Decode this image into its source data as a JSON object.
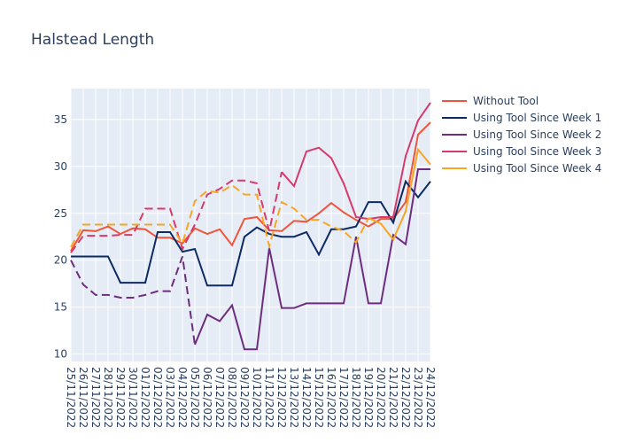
{
  "chart_data": {
    "type": "line",
    "title": "Halstead Length",
    "xlabel": "",
    "ylabel": "",
    "ylim": [
      9.2,
      38.3
    ],
    "yticks": [
      10,
      15,
      20,
      25,
      30,
      35
    ],
    "x": [
      "25/11/2022",
      "26/11/2022",
      "27/11/2022",
      "28/11/2022",
      "29/11/2022",
      "30/11/2022",
      "01/12/2022",
      "02/12/2022",
      "03/12/2022",
      "04/12/2022",
      "05/12/2022",
      "06/12/2022",
      "07/12/2022",
      "08/12/2022",
      "09/12/2022",
      "10/12/2022",
      "11/12/2022",
      "12/12/2022",
      "13/12/2022",
      "14/12/2022",
      "15/12/2022",
      "16/12/2022",
      "17/12/2022",
      "18/12/2022",
      "19/12/2022",
      "20/12/2022",
      "21/12/2022",
      "22/12/2022",
      "23/12/2022",
      "24/12/2022"
    ],
    "grid": true,
    "legend_position": "right",
    "series": [
      {
        "name": "Without Tool",
        "color": "#ef553b",
        "dash": "solid",
        "values": [
          21.0,
          23.2,
          23.1,
          23.6,
          22.8,
          23.4,
          23.3,
          22.4,
          22.4,
          21.8,
          23.4,
          22.8,
          23.3,
          21.6,
          24.4,
          24.6,
          23.2,
          23.1,
          24.2,
          24.1,
          25.0,
          26.1,
          25.1,
          24.3,
          23.6,
          24.4,
          24.4,
          26.2,
          33.4,
          34.7
        ]
      },
      {
        "name": "Using Tool Since Week 1",
        "color": "#0d2a63",
        "dash": "solid",
        "values": [
          20.4,
          20.4,
          20.4,
          20.4,
          17.6,
          17.6,
          17.6,
          23.0,
          23.0,
          20.9,
          21.2,
          17.3,
          17.3,
          17.3,
          22.5,
          23.5,
          22.8,
          22.5,
          22.5,
          23.0,
          20.6,
          23.3,
          23.3,
          23.6,
          26.2,
          26.2,
          24.0,
          28.4,
          26.7,
          28.4
        ]
      },
      {
        "name": "Using Tool Since Week 2",
        "color": "#6c2d7e",
        "dash": "mixed",
        "dash_from_index": 10,
        "values": [
          20.0,
          17.4,
          16.3,
          16.3,
          16.0,
          16.0,
          16.3,
          16.7,
          16.7,
          20.4,
          11.0,
          14.2,
          13.5,
          15.2,
          10.5,
          10.5,
          21.3,
          14.9,
          14.9,
          15.4,
          15.4,
          15.4,
          15.4,
          22.5,
          15.4,
          15.4,
          22.7,
          21.7,
          29.7,
          29.7
        ]
      },
      {
        "name": "Using Tool Since Week 3",
        "color": "#d63a6a",
        "dash": "mixed",
        "dash_from_index": 17,
        "values": [
          20.8,
          22.6,
          22.6,
          22.6,
          22.7,
          22.7,
          25.5,
          25.5,
          25.5,
          21.2,
          23.8,
          27.0,
          27.6,
          28.5,
          28.5,
          28.2,
          23.1,
          29.4,
          27.9,
          31.6,
          32.0,
          30.9,
          28.2,
          24.6,
          24.4,
          24.6,
          24.6,
          31.1,
          34.9,
          36.8
        ]
      },
      {
        "name": "Using Tool Since Week 4",
        "color": "#f6a623",
        "dash": "mixed",
        "dash_from_index": 24,
        "values": [
          21.4,
          23.8,
          23.8,
          23.8,
          23.8,
          23.8,
          23.8,
          23.8,
          23.8,
          21.8,
          26.3,
          27.4,
          27.2,
          28.0,
          27.0,
          27.0,
          21.5,
          26.2,
          25.5,
          24.3,
          24.3,
          23.6,
          23.1,
          21.9,
          24.5,
          23.9,
          22.2,
          25.2,
          31.8,
          30.2
        ]
      }
    ]
  }
}
